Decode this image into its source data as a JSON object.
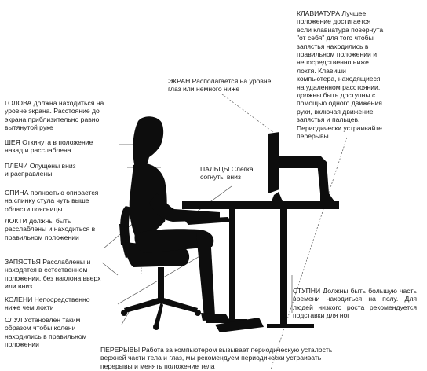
{
  "annotations": {
    "keyboard": "КЛАВИАТУРА Лучшее\nположение достигается\nесли клавиатура повернута\n\"от себя\" для того чтобы\nзапястья находились в\nправильном положении и\nнепосредственно ниже\nлоктя.  Клавиши\nкомпьютера, находящиеся\nна удаленном расстоянии,\nдолжны быть доступны с\nпомощью одного движения\nруки, включая движение\nзапястья и пальцев.\nПериодически устраивайте\nперерывы.",
    "screen": "ЭКРАН Располагается на уровне\nглаз или немного ниже",
    "head": "ГОЛОВА должна находиться на\nуровне экрана. Расстояние до\nэкрана приблизительно равно\nвытянутой руке",
    "neck": "ШЕЯ  Откинута в положение\nназад и расслаблена",
    "shoulders": "ПЛЕЧИ Опущены вниз\nи расправлены",
    "fingers": "ПАЛЬЦЫ Слегка\nсогнуты вниз",
    "back": "СПИНА полностью опирается\nна спинку стула  чуть выше\nобласти поясницы",
    "elbows": "ЛОКТИ должны быть\nрасслаблены и находиться в\nправильном положении",
    "wrists": "ЗАПЯСТЬЯ Расслаблены и\nнаходятся в естественном\nположении, без наклона вверх\nили вниз",
    "feet": "СТУПНИ  Должны быть большую часть времени находиться  на полу.  Для людей низкого роста рекомендуется подставки для ног",
    "knees": "КОЛЕНИ Непосредственно\nниже чем локти",
    "chair": "СЛУЛ Установлен таким\nобразом чтобы колени\nнаходились в правильном\nположении",
    "breaks": "ПЕРЕРЫВЫ Работа за компьютером вызывает периодическую усталость\nверхней части тела и глаз, мы рекомендуем периодически устраивать\nперерывы и менять положение тела"
  },
  "colors": {
    "silhouette": "#0d0d0d",
    "text": "#1a1a1a",
    "leader": "#555555"
  }
}
